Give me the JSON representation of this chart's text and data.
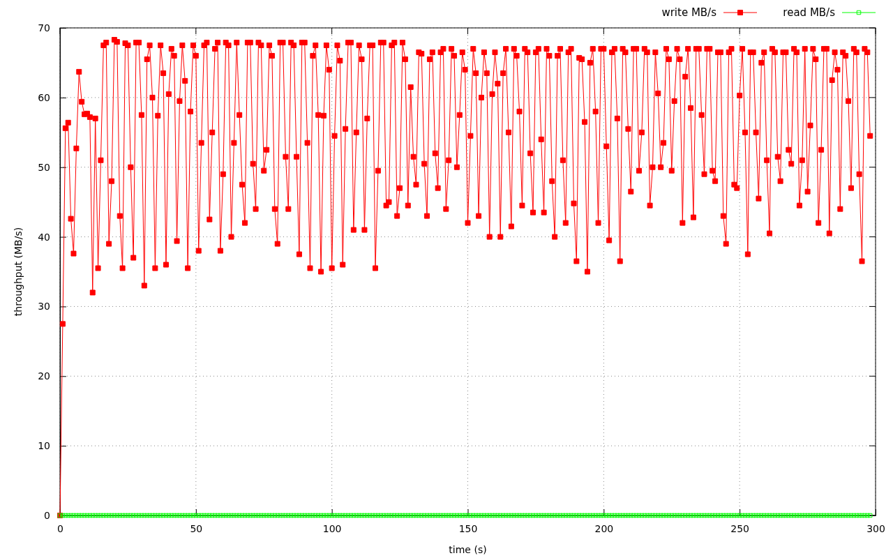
{
  "chart_data": {
    "type": "line",
    "xlabel": "time (s)",
    "ylabel": "throughput (MB/s)",
    "xlim": [
      0,
      300
    ],
    "xticks": [
      0,
      50,
      100,
      150,
      200,
      250,
      300
    ],
    "ylim": [
      0,
      70
    ],
    "yticks": [
      0,
      10,
      20,
      30,
      40,
      50,
      60,
      70
    ],
    "grid": true,
    "legend": "top right",
    "marker": "square",
    "line_style": "solid",
    "x": [
      0,
      1,
      2,
      3,
      4,
      5,
      6,
      7,
      8,
      9,
      10,
      11,
      12,
      13,
      14,
      15,
      16,
      17,
      18,
      19,
      20,
      21,
      22,
      23,
      24,
      25,
      26,
      27,
      28,
      29,
      30,
      31,
      32,
      33,
      34,
      35,
      36,
      37,
      38,
      39,
      40,
      41,
      42,
      43,
      44,
      45,
      46,
      47,
      48,
      49,
      50,
      51,
      52,
      53,
      54,
      55,
      56,
      57,
      58,
      59,
      60,
      61,
      62,
      63,
      64,
      65,
      66,
      67,
      68,
      69,
      70,
      71,
      72,
      73,
      74,
      75,
      76,
      77,
      78,
      79,
      80,
      81,
      82,
      83,
      84,
      85,
      86,
      87,
      88,
      89,
      90,
      91,
      92,
      93,
      94,
      95,
      96,
      97,
      98,
      99,
      100,
      101,
      102,
      103,
      104,
      105,
      106,
      107,
      108,
      109,
      110,
      111,
      112,
      113,
      114,
      115,
      116,
      117,
      118,
      119,
      120,
      121,
      122,
      123,
      124,
      125,
      126,
      127,
      128,
      129,
      130,
      131,
      132,
      133,
      134,
      135,
      136,
      137,
      138,
      139,
      140,
      141,
      142,
      143,
      144,
      145,
      146,
      147,
      148,
      149,
      150,
      151,
      152,
      153,
      154,
      155,
      156,
      157,
      158,
      159,
      160,
      161,
      162,
      163,
      164,
      165,
      166,
      167,
      168,
      169,
      170,
      171,
      172,
      173,
      174,
      175,
      176,
      177,
      178,
      179,
      180,
      181,
      182,
      183,
      184,
      185,
      186,
      187,
      188,
      189,
      190,
      191,
      192,
      193,
      194,
      195,
      196,
      197,
      198,
      199,
      200,
      201,
      202,
      203,
      204,
      205,
      206,
      207,
      208,
      209,
      210,
      211,
      212,
      213,
      214,
      215,
      216,
      217,
      218,
      219,
      220,
      221,
      222,
      223,
      224,
      225,
      226,
      227,
      228,
      229,
      230,
      231,
      232,
      233,
      234,
      235,
      236,
      237,
      238,
      239,
      240,
      241,
      242,
      243,
      244,
      245,
      246,
      247,
      248,
      249,
      250,
      251,
      252,
      253,
      254,
      255,
      256,
      257,
      258,
      259,
      260,
      261,
      262,
      263,
      264,
      265,
      266,
      267,
      268,
      269,
      270,
      271,
      272,
      273,
      274,
      275,
      276,
      277,
      278,
      279,
      280,
      281,
      282,
      283,
      284,
      285,
      286,
      287,
      288,
      289,
      290,
      291,
      292,
      293,
      294,
      295,
      296,
      297,
      298
    ],
    "series": [
      {
        "name": "write MB/s",
        "color": "#ff0000",
        "values": [
          0,
          27.5,
          55.6,
          56.4,
          42.6,
          37.6,
          52.7,
          63.7,
          59.4,
          57.6,
          57.7,
          57.2,
          32,
          57,
          35.5,
          51,
          67.5,
          67.9,
          39,
          48,
          68.3,
          68,
          43,
          35.5,
          67.8,
          67.5,
          50,
          37,
          67.9,
          67.9,
          57.5,
          33,
          65.5,
          67.5,
          60,
          35.5,
          57.4,
          67.5,
          63.5,
          36,
          60.5,
          67,
          66,
          39.4,
          59.5,
          67.5,
          62.4,
          35.5,
          58,
          67.5,
          66,
          38,
          53.5,
          67.5,
          67.9,
          42.5,
          55,
          67,
          67.9,
          38,
          49,
          67.9,
          67.5,
          40,
          53.5,
          67.9,
          57.5,
          47.5,
          42,
          67.9,
          67.9,
          50.5,
          44,
          67.9,
          67.5,
          49.5,
          52.5,
          67.5,
          66,
          44,
          39,
          67.9,
          67.9,
          51.5,
          44,
          67.9,
          67.5,
          51.5,
          37.5,
          67.9,
          67.9,
          53.5,
          35.5,
          66,
          67.5,
          57.5,
          35,
          57.4,
          67.5,
          64,
          35.5,
          54.5,
          67.5,
          65.3,
          36,
          55.5,
          67.9,
          67.9,
          41,
          55,
          67.5,
          65.5,
          41,
          57,
          67.5,
          67.5,
          35.5,
          49.5,
          67.9,
          67.9,
          44.5,
          45,
          67.5,
          67.9,
          43,
          47,
          67.9,
          65.5,
          44.5,
          61.5,
          51.5,
          47.5,
          66.5,
          66.3,
          50.5,
          43,
          65.5,
          66.5,
          52,
          47,
          66.5,
          67,
          44,
          51,
          67,
          66,
          50,
          57.5,
          66.5,
          64,
          42,
          54.5,
          67,
          63.5,
          43,
          60,
          66.5,
          63.5,
          40,
          60.5,
          66.5,
          62,
          40,
          63.5,
          67,
          55,
          41.5,
          67,
          66,
          58,
          44.5,
          67,
          66.5,
          52,
          43.5,
          66.5,
          67,
          54,
          43.5,
          67,
          66,
          48,
          40,
          66,
          67,
          51,
          42,
          66.5,
          67,
          44.8,
          36.5,
          65.7,
          65.5,
          56.5,
          35,
          65,
          67,
          58,
          42,
          67,
          67,
          53,
          39.5,
          66.5,
          67,
          57,
          36.5,
          67,
          66.5,
          55.5,
          46.5,
          67,
          67,
          49.5,
          55,
          67,
          66.5,
          44.5,
          50,
          66.5,
          60.6,
          50,
          53.5,
          67,
          65.5,
          49.5,
          59.5,
          67,
          65.5,
          42,
          63,
          67,
          58.5,
          42.8,
          67,
          67,
          57.5,
          49,
          67,
          67,
          49.5,
          48,
          66.5,
          66.5,
          43,
          39,
          66.5,
          67,
          47.5,
          47,
          60.3,
          67,
          55,
          37.5,
          66.5,
          66.5,
          55,
          45.5,
          65,
          66.5,
          51,
          40.5,
          67,
          66.5,
          51.5,
          48,
          66.5,
          66.5,
          52.5,
          50.5,
          67,
          66.5,
          44.5,
          51,
          67,
          46.5,
          56,
          67,
          65.5,
          42,
          52.5,
          67,
          67,
          40.5,
          62.5,
          66.5,
          64,
          44,
          66.5,
          66,
          59.5,
          47,
          67,
          66.5,
          49,
          36.5,
          67,
          66.5,
          54.5
        ]
      },
      {
        "name": "read MB/s",
        "color": "#00ff00",
        "values": [
          0,
          0,
          0,
          0,
          0,
          0,
          0,
          0,
          0,
          0,
          0,
          0,
          0,
          0,
          0,
          0,
          0,
          0,
          0,
          0,
          0,
          0,
          0,
          0,
          0,
          0,
          0,
          0,
          0,
          0,
          0,
          0,
          0,
          0,
          0,
          0,
          0,
          0,
          0,
          0,
          0,
          0,
          0,
          0,
          0,
          0,
          0,
          0,
          0,
          0,
          0,
          0,
          0,
          0,
          0,
          0,
          0,
          0,
          0,
          0,
          0,
          0,
          0,
          0,
          0,
          0,
          0,
          0,
          0,
          0,
          0,
          0,
          0,
          0,
          0,
          0,
          0,
          0,
          0,
          0,
          0,
          0,
          0,
          0,
          0,
          0,
          0,
          0,
          0,
          0,
          0,
          0,
          0,
          0,
          0,
          0,
          0,
          0,
          0,
          0,
          0,
          0,
          0,
          0,
          0,
          0,
          0,
          0,
          0,
          0,
          0,
          0,
          0,
          0,
          0,
          0,
          0,
          0,
          0,
          0,
          0,
          0,
          0,
          0,
          0,
          0,
          0,
          0,
          0,
          0,
          0,
          0,
          0,
          0,
          0,
          0,
          0,
          0,
          0,
          0,
          0,
          0,
          0,
          0,
          0,
          0,
          0,
          0,
          0,
          0,
          0,
          0,
          0,
          0,
          0,
          0,
          0,
          0,
          0,
          0,
          0,
          0,
          0,
          0,
          0,
          0,
          0,
          0,
          0,
          0,
          0,
          0,
          0,
          0,
          0,
          0,
          0,
          0,
          0,
          0,
          0,
          0,
          0,
          0,
          0,
          0,
          0,
          0,
          0,
          0,
          0,
          0,
          0,
          0,
          0,
          0,
          0,
          0,
          0,
          0,
          0,
          0,
          0,
          0,
          0,
          0,
          0,
          0,
          0,
          0,
          0,
          0,
          0,
          0,
          0,
          0,
          0,
          0,
          0,
          0,
          0,
          0,
          0,
          0,
          0,
          0,
          0,
          0,
          0,
          0,
          0,
          0,
          0,
          0,
          0,
          0,
          0,
          0,
          0,
          0,
          0,
          0,
          0,
          0,
          0,
          0,
          0,
          0,
          0,
          0,
          0,
          0,
          0,
          0,
          0,
          0,
          0,
          0,
          0,
          0,
          0,
          0,
          0,
          0,
          0,
          0,
          0,
          0,
          0,
          0,
          0,
          0,
          0,
          0,
          0,
          0,
          0,
          0,
          0,
          0,
          0,
          0,
          0,
          0,
          0,
          0,
          0,
          0,
          0,
          0,
          0,
          0,
          0,
          0,
          0,
          0,
          0,
          0,
          0
        ]
      }
    ]
  }
}
